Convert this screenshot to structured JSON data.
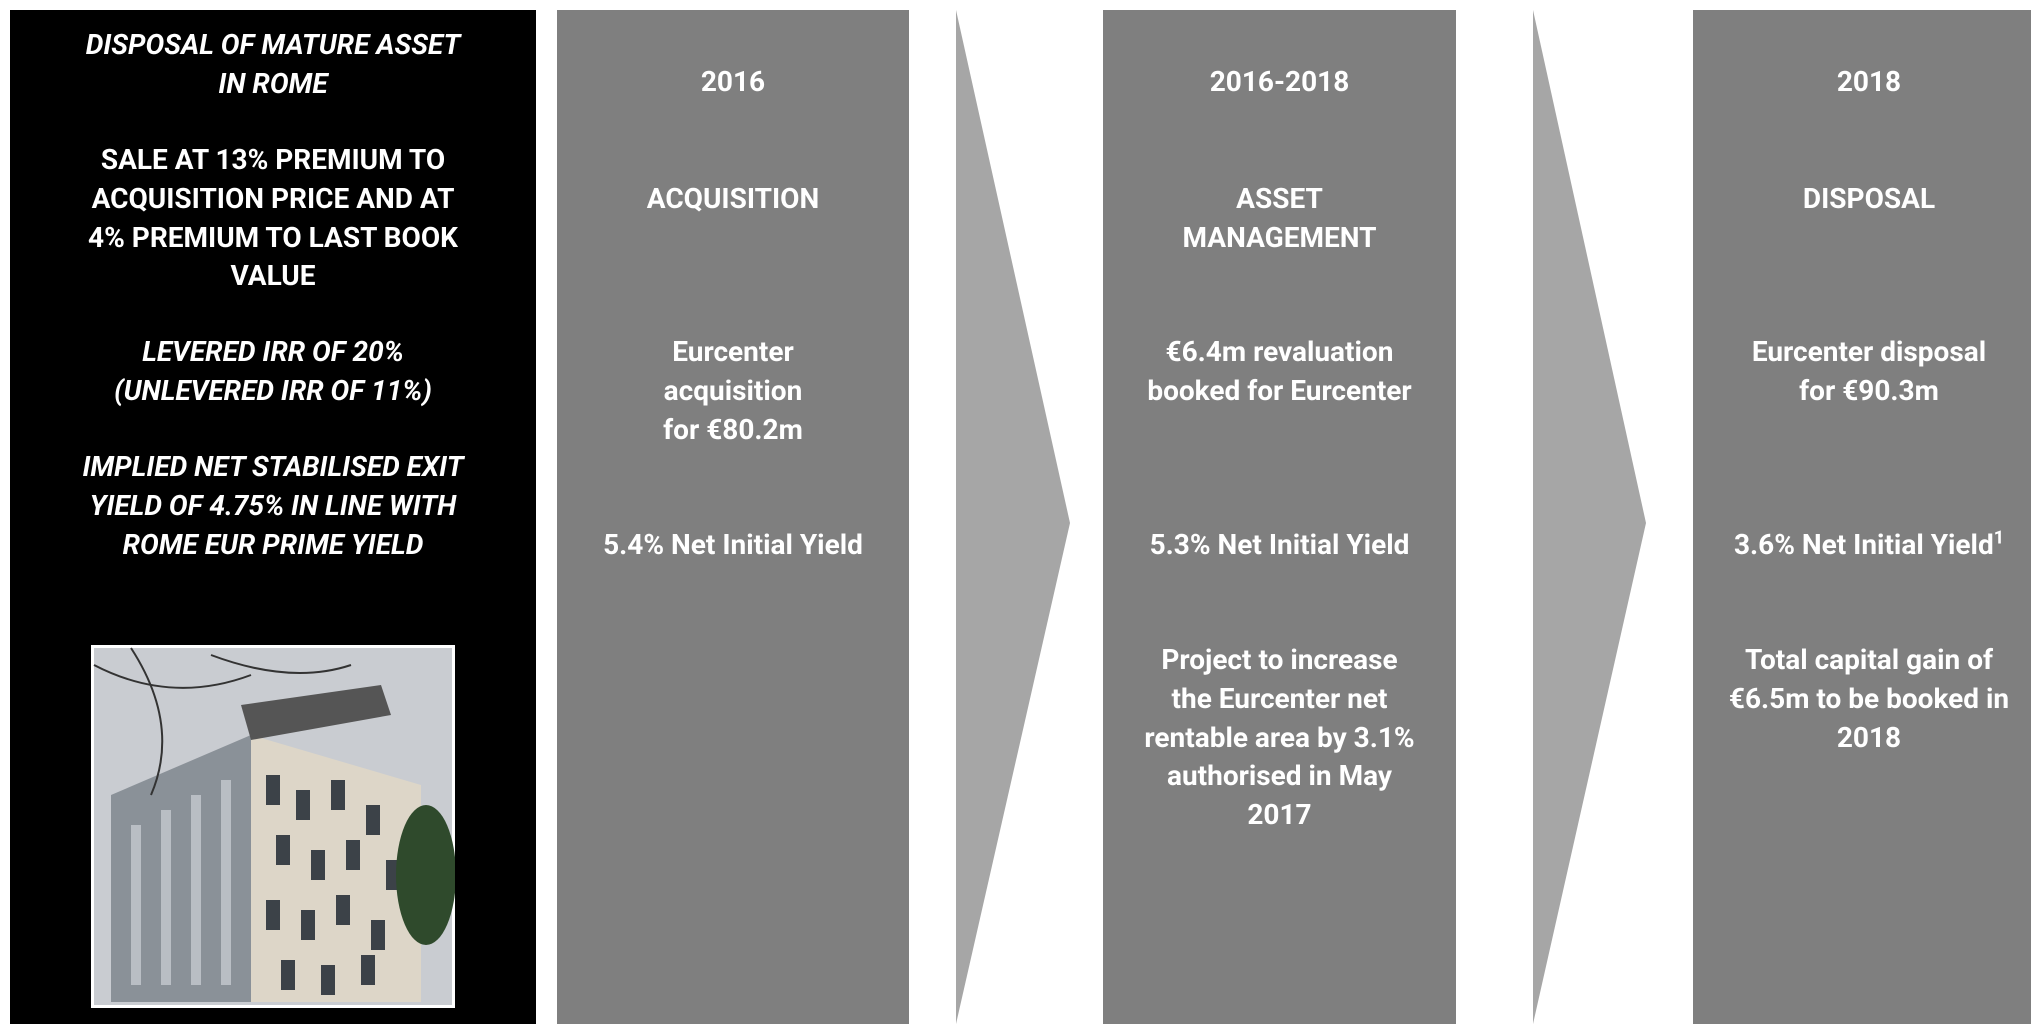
{
  "left_panel": {
    "blocks": [
      {
        "lines": [
          "DISPOSAL OF MATURE ASSET",
          "IN ROME"
        ],
        "italic": true
      },
      {
        "lines": [
          "SALE AT 13% PREMIUM TO",
          "ACQUISITION PRICE AND AT",
          "4% PREMIUM TO LAST BOOK",
          "VALUE"
        ],
        "italic": false
      },
      {
        "lines": [
          "LEVERED IRR OF 20%",
          "(UNLEVERED IRR OF 11%)"
        ],
        "italic": true
      },
      {
        "lines": [
          "IMPLIED NET STABILISED EXIT",
          "YIELD OF 4.75% IN LINE WITH",
          "ROME EUR PRIME YIELD"
        ],
        "italic": true
      }
    ]
  },
  "columns": [
    {
      "year": "2016",
      "title": [
        "ACQUISITION"
      ],
      "description": [
        "Eurcenter",
        "acquisition",
        "for €80.2m"
      ],
      "yield": "5.4% Net Initial Yield",
      "extra": []
    },
    {
      "year": "2016-2018",
      "title": [
        "ASSET",
        "MANAGEMENT"
      ],
      "description": [
        "€6.4m revaluation",
        "booked for Eurcenter"
      ],
      "yield": "5.3% Net Initial Yield",
      "extra": [
        "Project to increase",
        "the Eurcenter net",
        "rentable area by 3.1%",
        "authorised in May",
        "2017"
      ]
    },
    {
      "year": "2018",
      "title": [
        "DISPOSAL"
      ],
      "description": [
        "Eurcenter disposal",
        "for €90.3m"
      ],
      "yield": "3.6% Net Initial Yield",
      "yield_sup": "1",
      "extra": [
        "Total capital gain of",
        "€6.5m to be booked in",
        "2018"
      ]
    }
  ]
}
